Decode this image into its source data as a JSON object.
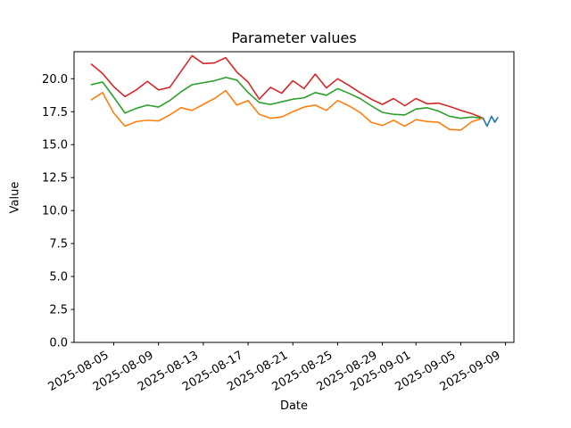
{
  "figure": {
    "background": "#ffffff",
    "title": "Parameter values",
    "xlabel": "Date",
    "ylabel": "Value"
  },
  "chart_data": {
    "type": "line",
    "title": "Parameter values",
    "xlabel": "Date",
    "ylabel": "Value",
    "grid": false,
    "legend": null,
    "ylim": [
      0,
      22.05
    ],
    "xlim_days_from_2025_08_01": [
      0.45,
      39.75
    ],
    "y_ticks": [
      "0.0",
      "2.5",
      "5.0",
      "7.5",
      "10.0",
      "12.5",
      "15.0",
      "17.5",
      "20.0"
    ],
    "y_tick_values": [
      0,
      2.5,
      5,
      7.5,
      10,
      12.5,
      15,
      17.5,
      20
    ],
    "x_ticks": [
      "2025-08-05",
      "2025-08-09",
      "2025-08-13",
      "2025-08-17",
      "2025-08-21",
      "2025-08-25",
      "2025-08-29",
      "2025-09-01",
      "2025-09-05",
      "2025-09-09"
    ],
    "x_tick_rotation_deg": 30,
    "x_dates": [
      "2025-08-03",
      "2025-08-04",
      "2025-08-05",
      "2025-08-06",
      "2025-08-07",
      "2025-08-08",
      "2025-08-09",
      "2025-08-10",
      "2025-08-11",
      "2025-08-12",
      "2025-08-13",
      "2025-08-14",
      "2025-08-15",
      "2025-08-16",
      "2025-08-17",
      "2025-08-18",
      "2025-08-19",
      "2025-08-20",
      "2025-08-21",
      "2025-08-22",
      "2025-08-23",
      "2025-08-24",
      "2025-08-25",
      "2025-08-26",
      "2025-08-27",
      "2025-08-28",
      "2025-08-29",
      "2025-08-30",
      "2025-08-31",
      "2025-09-01",
      "2025-09-02",
      "2025-09-03",
      "2025-09-04",
      "2025-09-05",
      "2025-09-06",
      "2025-09-07"
    ],
    "series": [
      {
        "name": "red-series",
        "color": "#d62728",
        "values": [
          21.1,
          20.4,
          19.4,
          18.65,
          19.15,
          19.8,
          19.15,
          19.35,
          20.55,
          21.75,
          21.15,
          21.2,
          21.6,
          20.5,
          19.75,
          18.45,
          19.35,
          18.9,
          19.85,
          19.25,
          20.35,
          19.3,
          20.0,
          19.5,
          18.95,
          18.45,
          18.05,
          18.5,
          17.95,
          18.5,
          18.1,
          18.15,
          17.9,
          17.6,
          17.35,
          17.0
        ]
      },
      {
        "name": "green-series",
        "color": "#2ca02c",
        "values": [
          19.55,
          19.75,
          18.6,
          17.4,
          17.75,
          18.0,
          17.85,
          18.35,
          19.0,
          19.55,
          19.7,
          19.85,
          20.1,
          19.9,
          18.95,
          18.2,
          18.05,
          18.25,
          18.45,
          18.55,
          18.95,
          18.75,
          19.25,
          18.9,
          18.5,
          17.95,
          17.45,
          17.3,
          17.25,
          17.7,
          17.8,
          17.55,
          17.15,
          17.0,
          17.1,
          17.0
        ]
      },
      {
        "name": "orange-series",
        "color": "#ff7f0e",
        "values": [
          18.4,
          18.95,
          17.4,
          16.4,
          16.75,
          16.85,
          16.8,
          17.25,
          17.8,
          17.6,
          18.05,
          18.5,
          19.1,
          18.0,
          18.35,
          17.3,
          17.0,
          17.1,
          17.5,
          17.85,
          18.0,
          17.6,
          18.35,
          17.95,
          17.45,
          16.7,
          16.45,
          16.85,
          16.4,
          16.9,
          16.75,
          16.7,
          16.15,
          16.1,
          16.75,
          17.0
        ]
      }
    ],
    "tail_series": {
      "name": "blue-series",
      "color": "#1f77b4",
      "start_date": "2025-09-07",
      "day_offsets": [
        0,
        0.35,
        0.75,
        1.05,
        1.3
      ],
      "values": [
        17.0,
        16.4,
        17.15,
        16.7,
        17.05
      ]
    }
  }
}
